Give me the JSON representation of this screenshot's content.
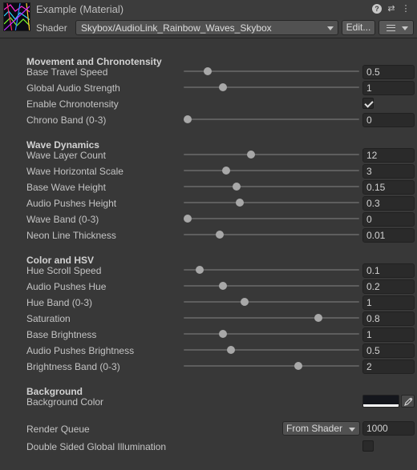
{
  "header": {
    "title": "Example (Material)",
    "shader_label": "Shader",
    "shader_value": "Skybox/AudioLink_Rainbow_Waves_Skybox",
    "edit_label": "Edit...",
    "icons": [
      "help-icon",
      "preset-icon",
      "more-icon"
    ]
  },
  "sections": {
    "movement": {
      "title": "Movement and Chronotensity",
      "props": [
        {
          "label": "Base Travel Speed",
          "value": "0.5",
          "fill": 0.12
        },
        {
          "label": "Global Audio Strength",
          "value": "1",
          "fill": 0.21
        },
        {
          "label": "Enable Chronotensity",
          "checked": true
        },
        {
          "label": "Chrono Band (0-3)",
          "value": "0",
          "fill": 0.0
        }
      ]
    },
    "wave": {
      "title": "Wave Dynamics",
      "props": [
        {
          "label": "Wave Layer Count",
          "value": "12",
          "fill": 0.38
        },
        {
          "label": "Wave Horizontal Scale",
          "value": "3",
          "fill": 0.23
        },
        {
          "label": "Base Wave Height",
          "value": "0.15",
          "fill": 0.29
        },
        {
          "label": "Audio Pushes Height",
          "value": "0.3",
          "fill": 0.31
        },
        {
          "label": "Wave Band (0-3)",
          "value": "0",
          "fill": 0.0
        },
        {
          "label": "Neon Line Thickness",
          "value": "0.01",
          "fill": 0.19
        }
      ]
    },
    "color": {
      "title": "Color and HSV",
      "props": [
        {
          "label": "Hue Scroll Speed",
          "value": "0.1",
          "fill": 0.07
        },
        {
          "label": "Audio Pushes Hue",
          "value": "0.2",
          "fill": 0.21
        },
        {
          "label": "Hue Band (0-3)",
          "value": "1",
          "fill": 0.34
        },
        {
          "label": "Saturation",
          "value": "0.8",
          "fill": 0.78
        },
        {
          "label": "Base Brightness",
          "value": "1",
          "fill": 0.21
        },
        {
          "label": "Audio Pushes Brightness",
          "value": "0.5",
          "fill": 0.26
        },
        {
          "label": "Brightness Band (0-3)",
          "value": "2",
          "fill": 0.66
        }
      ]
    },
    "background": {
      "title": "Background",
      "color_label": "Background Color",
      "color_value": "#14161c"
    }
  },
  "footer": {
    "render_queue_label": "Render Queue",
    "render_queue_mode": "From Shader",
    "render_queue_value": "1000",
    "double_sided_label": "Double Sided Global Illumination",
    "double_sided_checked": false
  }
}
